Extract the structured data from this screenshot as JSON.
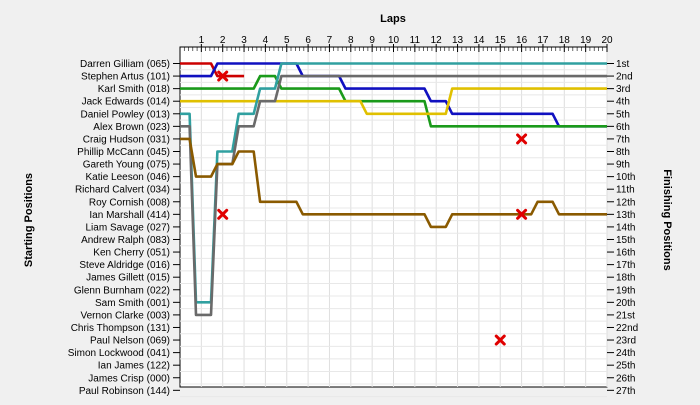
{
  "chart_data": {
    "type": "line",
    "title": "",
    "xlabel": "Laps",
    "ylabel_left": "Starting Positions",
    "ylabel_right": "Finishing Positions",
    "laps": [
      1,
      2,
      3,
      4,
      5,
      6,
      7,
      8,
      9,
      10,
      11,
      12,
      13,
      14,
      15,
      16,
      17,
      18,
      19,
      20
    ],
    "drivers": [
      "Darren Gilliam (065)",
      "Stephen Artus (101)",
      "Karl Smith (018)",
      "Jack Edwards (014)",
      "Daniel Powley (013)",
      "Alex Brown (023)",
      "Craig Hudson (031)",
      "Phillip McCann (045)",
      "Gareth Young (075)",
      "Katie Leeson (046)",
      "Richard Calvert (034)",
      "Roy Cornish (008)",
      "Ian Marshall (414)",
      "Liam Savage (027)",
      "Andrew Ralph (083)",
      "Ken Cherry (051)",
      "Steve Aldridge (016)",
      "James Gillett (015)",
      "Glenn Burnham (022)",
      "Sam Smith (001)",
      "Vernon Clarke (003)",
      "Chris Thompson (131)",
      "Paul Nelson (069)",
      "Simon Lockwood (041)",
      "Ian James (122)",
      "James Crisp (000)",
      "Paul Robinson (144)"
    ],
    "finishing_labels": [
      "1st",
      "2nd",
      "3rd",
      "4th",
      "5th",
      "6th",
      "7th",
      "8th",
      "9th",
      "10th",
      "11th",
      "12th",
      "13th",
      "14th",
      "15th",
      "16th",
      "17th",
      "18th",
      "19th",
      "20th",
      "21st",
      "22nd",
      "23rd",
      "24th",
      "25th",
      "26th",
      "27th"
    ],
    "series": [
      {
        "color": "#cc0000",
        "values": [
          1,
          2,
          2
        ],
        "retired_lap": 2
      },
      {
        "color": "#1010c0",
        "values": [
          2,
          1,
          1,
          1,
          1,
          2,
          2,
          3,
          3,
          3,
          3,
          4,
          5,
          5,
          5,
          5,
          5,
          6,
          6,
          6
        ]
      },
      {
        "color": "#1a9a1a",
        "values": [
          3,
          3,
          3,
          2,
          3,
          3,
          3,
          4,
          4,
          4,
          4,
          6,
          6,
          6,
          6,
          6,
          6,
          6,
          6,
          6
        ]
      },
      {
        "color": "#e0c000",
        "values": [
          4,
          4,
          4,
          4,
          4,
          4,
          4,
          4,
          5,
          5,
          5,
          5,
          3,
          3,
          3,
          3,
          3,
          3,
          3,
          3
        ]
      },
      {
        "color": "#30a0a0",
        "values": [
          20,
          8,
          5,
          3,
          1,
          1,
          1,
          1,
          1,
          1,
          1,
          1,
          1,
          1,
          1,
          1,
          1,
          1,
          1,
          1
        ]
      },
      {
        "color": "#6a6a6a",
        "values": [
          21,
          9,
          6,
          4,
          2,
          2,
          2,
          2,
          2,
          2,
          2,
          2,
          2,
          2,
          2,
          2,
          2,
          2,
          2,
          2
        ]
      },
      {
        "color": "#8a5a00",
        "values": [
          10,
          9,
          8,
          12,
          12,
          13,
          13,
          13,
          13,
          13,
          13,
          14,
          13,
          13,
          13,
          13,
          12,
          13,
          13,
          13
        ]
      }
    ],
    "retirements_marked": [
      {
        "lap": 2,
        "position": 2
      },
      {
        "lap": 2,
        "position": 13
      },
      {
        "lap": 16,
        "position": 7
      },
      {
        "lap": 16,
        "position": 13
      },
      {
        "lap": 15,
        "position": 23
      }
    ]
  }
}
